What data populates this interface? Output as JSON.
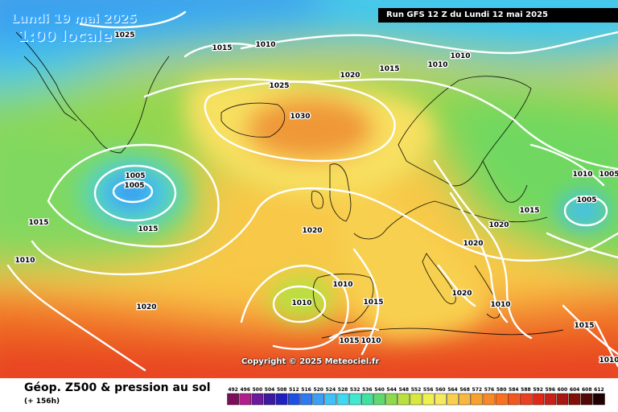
{
  "header": {
    "date": "Lundi 19 mai 2025",
    "local_time": "1:00 locale",
    "run": "Run GFS 12 Z du Lundi 12 mai 2025"
  },
  "copyright": "Copyright © 2025 Meteociel.fr",
  "footer": {
    "title": "Géop. Z500 & pression au sol",
    "subtitle": "(+ 156h)"
  },
  "isobars": [
    {
      "label": "1025"
    },
    {
      "label": "1015"
    },
    {
      "label": "1010"
    },
    {
      "label": "1005"
    },
    {
      "label": "1020"
    },
    {
      "label": "1015"
    },
    {
      "label": "1010"
    },
    {
      "label": "1025"
    },
    {
      "label": "1030"
    },
    {
      "label": "1010"
    },
    {
      "label": "1005"
    },
    {
      "label": "1015"
    },
    {
      "label": "1015"
    },
    {
      "label": "1010"
    },
    {
      "label": "1020"
    },
    {
      "label": "1020"
    },
    {
      "label": "1010"
    },
    {
      "label": "1010"
    },
    {
      "label": "1015"
    },
    {
      "label": "1015"
    },
    {
      "label": "1010"
    },
    {
      "label": "1020"
    },
    {
      "label": "1020"
    },
    {
      "label": "1020"
    },
    {
      "label": "1010"
    },
    {
      "label": "1010"
    },
    {
      "label": "1005"
    },
    {
      "label": "1015"
    },
    {
      "label": "1015"
    },
    {
      "label": "1005"
    },
    {
      "label": "1020"
    },
    {
      "label": "1010"
    }
  ],
  "legend": {
    "values": [
      "492",
      "496",
      "500",
      "504",
      "508",
      "512",
      "516",
      "520",
      "524",
      "528",
      "532",
      "536",
      "540",
      "544",
      "548",
      "552",
      "556",
      "560",
      "564",
      "568",
      "572",
      "576",
      "580",
      "584",
      "588",
      "592",
      "596",
      "600",
      "604",
      "608",
      "612"
    ],
    "colors": [
      "#7a0f5a",
      "#b01f8a",
      "#6a1a9a",
      "#3c1aa0",
      "#2020c0",
      "#2050e0",
      "#2f7af0",
      "#3ba0f5",
      "#40c0f8",
      "#40d8f0",
      "#40e8d0",
      "#40e0a0",
      "#60d870",
      "#90d850",
      "#b8e040",
      "#d8e840",
      "#f0f050",
      "#f8e860",
      "#f8d050",
      "#f8b840",
      "#f8a030",
      "#f88828",
      "#f87020",
      "#f05820",
      "#e84020",
      "#e02818",
      "#c82018",
      "#a81810",
      "#801008",
      "#500808",
      "#200000"
    ]
  }
}
